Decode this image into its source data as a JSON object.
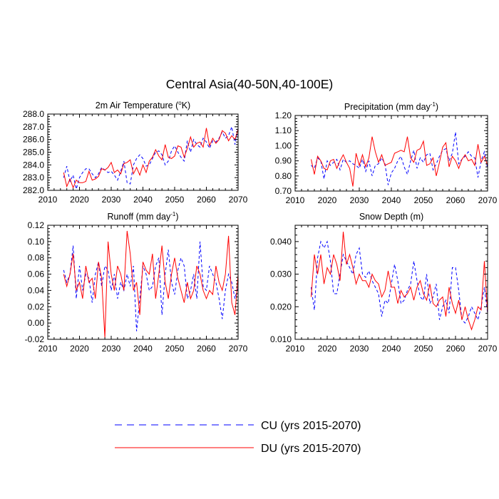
{
  "figure": {
    "title": "Central Asia(40-50N,40-100E)",
    "legend": [
      {
        "label": "CU (yrs 2015-2070)",
        "color": "#0000ff",
        "dash": "dashed"
      },
      {
        "label": "DU (yrs 2015-2070)",
        "color": "#ff0000",
        "dash": "solid"
      }
    ]
  },
  "chart_data": [
    {
      "type": "line",
      "title": "2m Air Temperature (°K)",
      "title_main": "2m Air Temperature (",
      "title_sup": "o",
      "title_tail": "K)",
      "xlim": [
        2010,
        2070
      ],
      "ylim": [
        282.0,
        288.0
      ],
      "xticks": [
        2010,
        2020,
        2030,
        2040,
        2050,
        2060,
        2070
      ],
      "xtick_labels": [
        "2010",
        "2020",
        "2030",
        "2040",
        "2050",
        "2060",
        "2070"
      ],
      "yticks": [
        282.0,
        283.0,
        284.0,
        285.0,
        286.0,
        287.0,
        288.0
      ],
      "ytick_labels": [
        "282.0",
        "283.0",
        "284.0",
        "285.0",
        "286.0",
        "287.0",
        "288.0"
      ],
      "x_start": 2015,
      "series": [
        {
          "name": "CU",
          "color": "#0000ff",
          "dash": "4,3",
          "values": [
            283.0,
            283.9,
            282.7,
            283.2,
            282.1,
            283.0,
            283.4,
            283.7,
            283.7,
            283.3,
            283.0,
            283.3,
            283.8,
            283.6,
            283.4,
            283.5,
            283.2,
            282.8,
            283.5,
            284.3,
            282.6,
            282.5,
            284.0,
            284.5,
            284.8,
            284.5,
            283.9,
            284.0,
            284.5,
            285.0,
            285.1,
            284.8,
            284.0,
            284.3,
            285.1,
            285.5,
            285.0,
            284.6,
            284.3,
            285.9,
            285.0,
            286.0,
            285.6,
            285.4,
            286.1,
            285.8,
            285.3,
            285.9,
            285.8,
            286.1,
            286.6,
            286.1,
            286.3,
            287.0,
            285.6,
            286.9
          ]
        },
        {
          "name": "DU",
          "color": "#ff0000",
          "dash": "",
          "values": [
            283.4,
            282.3,
            282.9,
            282.2,
            282.8,
            282.6,
            282.6,
            282.7,
            283.5,
            282.8,
            282.9,
            283.1,
            283.7,
            283.6,
            283.8,
            284.2,
            283.4,
            283.6,
            283.3,
            284.1,
            284.2,
            284.4,
            283.3,
            283.8,
            283.2,
            284.0,
            283.4,
            284.3,
            284.6,
            285.2,
            284.7,
            284.4,
            285.6,
            284.6,
            284.5,
            284.7,
            285.5,
            285.4,
            284.6,
            285.3,
            286.2,
            285.4,
            285.7,
            285.8,
            285.4,
            286.9,
            285.5,
            286.1,
            285.7,
            286.0,
            286.7,
            286.5,
            285.9,
            286.3,
            286.0,
            286.8
          ]
        }
      ]
    },
    {
      "type": "line",
      "title": "Precipitation (mm day-1)",
      "title_main": "Precipitation (mm day",
      "title_sup": "-1",
      "title_tail": ")",
      "xlim": [
        2010,
        2070
      ],
      "ylim": [
        0.7,
        1.2
      ],
      "xticks": [
        2010,
        2020,
        2030,
        2040,
        2050,
        2060,
        2070
      ],
      "xtick_labels": [
        "2010",
        "2020",
        "2030",
        "2040",
        "2050",
        "2060",
        "2070"
      ],
      "yticks": [
        0.7,
        0.8,
        0.9,
        1.0,
        1.1,
        1.2
      ],
      "ytick_labels": [
        "0.70",
        "0.80",
        "0.90",
        "1.00",
        "1.10",
        "1.20"
      ],
      "x_start": 2015,
      "series": [
        {
          "name": "CU",
          "color": "#0000ff",
          "dash": "4,3",
          "values": [
            0.87,
            0.85,
            0.92,
            0.9,
            0.78,
            0.9,
            0.87,
            0.89,
            0.91,
            0.84,
            0.91,
            0.89,
            0.9,
            0.88,
            0.87,
            0.85,
            0.91,
            0.83,
            0.9,
            0.8,
            0.87,
            0.88,
            0.92,
            0.88,
            0.74,
            0.82,
            0.85,
            0.9,
            0.93,
            0.86,
            0.81,
            0.9,
            0.97,
            0.85,
            0.92,
            0.89,
            0.94,
            0.95,
            0.84,
            0.88,
            0.93,
            0.97,
            0.98,
            0.9,
            0.95,
            1.09,
            0.88,
            0.91,
            0.93,
            0.96,
            0.93,
            0.92,
            0.79,
            0.9,
            0.96,
            0.85
          ]
        },
        {
          "name": "DU",
          "color": "#ff0000",
          "dash": "",
          "values": [
            0.91,
            0.81,
            0.93,
            0.9,
            0.85,
            0.84,
            0.9,
            0.91,
            0.85,
            0.9,
            0.94,
            0.89,
            0.85,
            0.73,
            0.95,
            0.87,
            0.94,
            0.86,
            0.92,
            1.06,
            0.96,
            0.89,
            0.94,
            0.87,
            0.88,
            0.89,
            0.95,
            0.96,
            0.97,
            0.96,
            1.06,
            0.92,
            0.89,
            0.97,
            0.98,
            1.03,
            0.87,
            0.88,
            0.92,
            0.8,
            0.89,
            0.99,
            1.02,
            0.86,
            0.93,
            0.9,
            0.85,
            0.91,
            0.94,
            0.9,
            0.91,
            0.87,
            1.01,
            0.89,
            0.93,
            0.87
          ]
        }
      ]
    },
    {
      "type": "line",
      "title": "Runoff (mm day-1)",
      "title_main": "Runoff (mm day",
      "title_sup": "-1",
      "title_tail": ")",
      "xlim": [
        2010,
        2070
      ],
      "ylim": [
        -0.02,
        0.12
      ],
      "xticks": [
        2010,
        2020,
        2030,
        2040,
        2050,
        2060,
        2070
      ],
      "xtick_labels": [
        "2010",
        "2020",
        "2030",
        "2040",
        "2050",
        "2060",
        "2070"
      ],
      "yticks": [
        -0.02,
        0.0,
        0.02,
        0.04,
        0.06,
        0.08,
        0.1,
        0.12
      ],
      "ytick_labels": [
        "-0.02",
        "0.00",
        "0.02",
        "0.04",
        "0.06",
        "0.08",
        "0.10",
        "0.12"
      ],
      "x_start": 2015,
      "series": [
        {
          "name": "CU",
          "color": "#0000ff",
          "dash": "4,3",
          "values": [
            0.065,
            0.05,
            0.06,
            0.095,
            0.03,
            0.07,
            0.04,
            0.06,
            0.055,
            0.025,
            0.06,
            0.075,
            0.045,
            0.07,
            0.065,
            0.04,
            0.06,
            0.03,
            0.05,
            0.04,
            0.06,
            0.045,
            0.07,
            -0.01,
            0.03,
            0.07,
            0.06,
            0.04,
            0.045,
            0.07,
            0.08,
            0.01,
            0.06,
            0.09,
            0.05,
            0.035,
            0.065,
            0.08,
            0.07,
            0.03,
            0.04,
            0.06,
            0.03,
            0.1,
            0.045,
            0.04,
            0.07,
            0.06,
            0.05,
            0.03,
            0.005,
            0.04,
            0.06,
            0.05,
            0.03,
            0.045
          ]
        },
        {
          "name": "DU",
          "color": "#ff0000",
          "dash": "",
          "values": [
            0.06,
            0.045,
            0.06,
            0.085,
            0.04,
            0.05,
            0.03,
            0.07,
            0.05,
            0.055,
            0.03,
            0.075,
            0.055,
            -0.018,
            0.1,
            0.06,
            0.04,
            0.07,
            0.06,
            0.04,
            0.113,
            0.085,
            0.04,
            0.05,
            0.01,
            0.075,
            0.065,
            0.06,
            0.085,
            0.03,
            0.06,
            0.095,
            0.05,
            0.03,
            0.06,
            0.08,
            0.055,
            0.04,
            0.025,
            0.05,
            0.03,
            0.04,
            0.07,
            0.06,
            0.04,
            0.03,
            0.04,
            0.035,
            0.07,
            0.05,
            0.04,
            0.06,
            0.107,
            0.025,
            0.01,
            0.06
          ]
        }
      ]
    },
    {
      "type": "line",
      "title": "Snow Depth (m)",
      "title_main": "Snow Depth (m)",
      "title_sup": "",
      "title_tail": "",
      "xlim": [
        2010,
        2070
      ],
      "ylim": [
        0.01,
        0.045
      ],
      "xticks": [
        2010,
        2020,
        2030,
        2040,
        2050,
        2060,
        2070
      ],
      "xtick_labels": [
        "2010",
        "2020",
        "2030",
        "2040",
        "2050",
        "2060",
        "2070"
      ],
      "yticks": [
        0.01,
        0.02,
        0.03,
        0.04
      ],
      "ytick_labels": [
        "0.010",
        "0.020",
        "0.030",
        "0.040"
      ],
      "x_start": 2015,
      "series": [
        {
          "name": "CU",
          "color": "#0000ff",
          "dash": "4,3",
          "values": [
            0.026,
            0.019,
            0.035,
            0.04,
            0.038,
            0.04,
            0.034,
            0.024,
            0.024,
            0.03,
            0.036,
            0.034,
            0.032,
            0.03,
            0.036,
            0.038,
            0.03,
            0.029,
            0.031,
            0.028,
            0.026,
            0.024,
            0.017,
            0.022,
            0.021,
            0.027,
            0.033,
            0.028,
            0.021,
            0.022,
            0.025,
            0.027,
            0.034,
            0.028,
            0.023,
            0.022,
            0.03,
            0.021,
            0.023,
            0.027,
            0.016,
            0.02,
            0.022,
            0.018,
            0.032,
            0.032,
            0.025,
            0.016,
            0.015,
            0.017,
            0.02,
            0.018,
            0.016,
            0.02,
            0.026,
            0.018
          ]
        },
        {
          "name": "DU",
          "color": "#ff0000",
          "dash": "",
          "values": [
            0.023,
            0.036,
            0.03,
            0.036,
            0.027,
            0.032,
            0.03,
            0.036,
            0.033,
            0.028,
            0.043,
            0.033,
            0.036,
            0.032,
            0.027,
            0.03,
            0.028,
            0.028,
            0.026,
            0.03,
            0.028,
            0.027,
            0.023,
            0.025,
            0.031,
            0.026,
            0.026,
            0.021,
            0.025,
            0.023,
            0.024,
            0.026,
            0.022,
            0.026,
            0.028,
            0.024,
            0.022,
            0.027,
            0.021,
            0.02,
            0.022,
            0.023,
            0.017,
            0.026,
            0.021,
            0.018,
            0.022,
            0.016,
            0.02,
            0.016,
            0.013,
            0.016,
            0.02,
            0.019,
            0.034,
            0.018
          ]
        }
      ]
    }
  ]
}
